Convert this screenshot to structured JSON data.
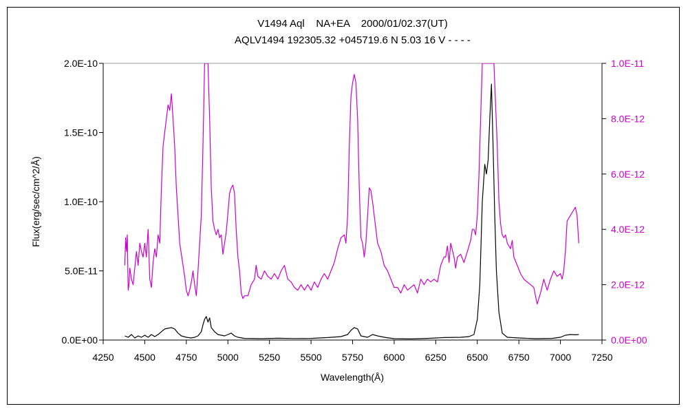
{
  "title": {
    "line1": "V1494 Aql    NA+EA    2000/01/02.37(UT)",
    "line2": "AQLV1494 192305.32 +045719.6 N 5.03 16 V - - - -"
  },
  "colors": {
    "left_series": "#000000",
    "right_series": "#cc00cc",
    "right_axis": "#cc00cc"
  },
  "chart_data": {
    "type": "line",
    "title": "V1494 Aql    NA+EA    2000/01/02.37(UT)",
    "subtitle": "AQLV1494 192305.32 +045719.6 N 5.03 16 V - - - -",
    "xlabel": "Wavelength(Å)",
    "ylabel": "Flux(erg/sec/cm^2/Å)",
    "xlim": [
      4250,
      7250
    ],
    "ylim": [
      0,
      2e-10
    ],
    "y2lim": [
      0,
      1e-11
    ],
    "xticks": [
      "4250",
      "4500",
      "4750",
      "5000",
      "5250",
      "5500",
      "5750",
      "6000",
      "6250",
      "6500",
      "6750",
      "7000",
      "7250"
    ],
    "yticks": [
      "0.0E+00",
      "5.0E-11",
      "1.0E-10",
      "1.5E-10",
      "2.0E-10"
    ],
    "y2ticks": [
      "0.0E+00",
      "2.0E-12",
      "4.0E-12",
      "6.0E-12",
      "8.0E-12",
      "1.0E-11"
    ],
    "grid": false,
    "series": [
      {
        "axis": "left",
        "color": "#000000",
        "points": [
          [
            4380,
            3e-12
          ],
          [
            4400,
            2e-12
          ],
          [
            4420,
            4e-12
          ],
          [
            4440,
            1.5e-12
          ],
          [
            4460,
            3e-12
          ],
          [
            4480,
            2e-12
          ],
          [
            4500,
            3.5e-12
          ],
          [
            4520,
            2e-12
          ],
          [
            4540,
            4e-12
          ],
          [
            4560,
            2.5e-12
          ],
          [
            4580,
            4e-12
          ],
          [
            4600,
            6e-12
          ],
          [
            4620,
            8e-12
          ],
          [
            4640,
            8.5e-12
          ],
          [
            4660,
            9e-12
          ],
          [
            4680,
            8e-12
          ],
          [
            4700,
            5e-12
          ],
          [
            4720,
            3e-12
          ],
          [
            4750,
            2e-12
          ],
          [
            4780,
            1.5e-12
          ],
          [
            4800,
            2e-12
          ],
          [
            4820,
            3e-12
          ],
          [
            4840,
            6e-12
          ],
          [
            4850,
            1.1e-11
          ],
          [
            4860,
            1.5e-11
          ],
          [
            4870,
            1.7e-11
          ],
          [
            4880,
            1.3e-11
          ],
          [
            4890,
            1.6e-11
          ],
          [
            4900,
            9e-12
          ],
          [
            4920,
            6e-12
          ],
          [
            4940,
            4e-12
          ],
          [
            4960,
            3.5e-12
          ],
          [
            4980,
            3e-12
          ],
          [
            5000,
            4e-12
          ],
          [
            5020,
            5e-12
          ],
          [
            5040,
            3e-12
          ],
          [
            5060,
            2e-12
          ],
          [
            5100,
            1.2e-12
          ],
          [
            5200,
            1e-12
          ],
          [
            5300,
            1.3e-12
          ],
          [
            5400,
            1.1e-12
          ],
          [
            5500,
            1.2e-12
          ],
          [
            5600,
            1.8e-12
          ],
          [
            5680,
            2.5e-12
          ],
          [
            5720,
            4e-12
          ],
          [
            5740,
            7e-12
          ],
          [
            5760,
            9e-12
          ],
          [
            5780,
            8e-12
          ],
          [
            5800,
            3e-12
          ],
          [
            5840,
            2e-12
          ],
          [
            5870,
            4e-12
          ],
          [
            5900,
            3e-12
          ],
          [
            5950,
            1.8e-12
          ],
          [
            6000,
            1e-12
          ],
          [
            6100,
            8e-13
          ],
          [
            6200,
            1.2e-12
          ],
          [
            6300,
            1.8e-12
          ],
          [
            6400,
            2e-12
          ],
          [
            6450,
            2.5e-12
          ],
          [
            6480,
            4e-12
          ],
          [
            6500,
            1.5e-11
          ],
          [
            6515,
            4e-11
          ],
          [
            6530,
            1e-10
          ],
          [
            6545,
            1.27e-10
          ],
          [
            6555,
            1.2e-10
          ],
          [
            6565,
            1.3e-10
          ],
          [
            6575,
            1.6e-10
          ],
          [
            6585,
            1.85e-10
          ],
          [
            6595,
            1.4e-10
          ],
          [
            6605,
            9e-11
          ],
          [
            6615,
            5e-11
          ],
          [
            6630,
            2e-11
          ],
          [
            6650,
            5e-12
          ],
          [
            6680,
            2e-12
          ],
          [
            6750,
            1.5e-12
          ],
          [
            6850,
            1e-12
          ],
          [
            6950,
            1.2e-12
          ],
          [
            7000,
            2e-12
          ],
          [
            7030,
            3.5e-12
          ],
          [
            7060,
            4e-12
          ],
          [
            7090,
            3.8e-12
          ],
          [
            7110,
            4e-12
          ]
        ]
      },
      {
        "axis": "right",
        "color": "#cc00cc",
        "points": [
          [
            4380,
            2.7e-12
          ],
          [
            4385,
            3.7e-12
          ],
          [
            4390,
            3.2e-12
          ],
          [
            4395,
            3.8e-12
          ],
          [
            4400,
            1.8e-12
          ],
          [
            4405,
            2e-12
          ],
          [
            4410,
            2.6e-12
          ],
          [
            4420,
            2.2e-12
          ],
          [
            4430,
            2e-12
          ],
          [
            4440,
            2.6e-12
          ],
          [
            4450,
            3.2e-12
          ],
          [
            4460,
            2.7e-12
          ],
          [
            4470,
            3.5e-12
          ],
          [
            4480,
            3.2e-12
          ],
          [
            4490,
            3e-12
          ],
          [
            4500,
            3.5e-12
          ],
          [
            4510,
            3e-12
          ],
          [
            4520,
            4e-12
          ],
          [
            4530,
            2.2e-12
          ],
          [
            4540,
            1.9e-12
          ],
          [
            4550,
            2.8e-12
          ],
          [
            4560,
            3.3e-12
          ],
          [
            4570,
            3e-12
          ],
          [
            4580,
            3.8e-12
          ],
          [
            4590,
            3.5e-12
          ],
          [
            4600,
            5.5e-12
          ],
          [
            4610,
            7e-12
          ],
          [
            4620,
            7.5e-12
          ],
          [
            4630,
            8e-12
          ],
          [
            4640,
            8.5e-12
          ],
          [
            4650,
            8.3e-12
          ],
          [
            4660,
            8.9e-12
          ],
          [
            4670,
            8e-12
          ],
          [
            4680,
            7e-12
          ],
          [
            4690,
            5.5e-12
          ],
          [
            4700,
            4.5e-12
          ],
          [
            4710,
            3.5e-12
          ],
          [
            4720,
            3.1e-12
          ],
          [
            4730,
            2.7e-12
          ],
          [
            4740,
            2.3e-12
          ],
          [
            4750,
            1.8e-12
          ],
          [
            4760,
            1.6e-12
          ],
          [
            4770,
            1.8e-12
          ],
          [
            4780,
            2.1e-12
          ],
          [
            4790,
            2.5e-12
          ],
          [
            4800,
            2e-12
          ],
          [
            4810,
            1.6e-12
          ],
          [
            4820,
            2.5e-12
          ],
          [
            4830,
            3.5e-12
          ],
          [
            4840,
            4.5e-12
          ],
          [
            4850,
            7e-12
          ],
          [
            4860,
            1e-11
          ],
          [
            4870,
            1e-11
          ],
          [
            4880,
            1e-11
          ],
          [
            4890,
            8e-12
          ],
          [
            4900,
            5.5e-12
          ],
          [
            4910,
            4.3e-12
          ],
          [
            4920,
            4e-12
          ],
          [
            4930,
            3.8e-12
          ],
          [
            4940,
            4e-12
          ],
          [
            4950,
            3.7e-12
          ],
          [
            4960,
            3.8e-12
          ],
          [
            4970,
            3.1e-12
          ],
          [
            4980,
            3.5e-12
          ],
          [
            4990,
            3.9e-12
          ],
          [
            5000,
            4.6e-12
          ],
          [
            5010,
            5.3e-12
          ],
          [
            5020,
            5.5e-12
          ],
          [
            5030,
            5.6e-12
          ],
          [
            5040,
            5.3e-12
          ],
          [
            5050,
            4e-12
          ],
          [
            5060,
            3e-12
          ],
          [
            5070,
            2.5e-12
          ],
          [
            5080,
            1.7e-12
          ],
          [
            5090,
            1.5e-12
          ],
          [
            5100,
            1.6e-12
          ],
          [
            5120,
            1.6e-12
          ],
          [
            5140,
            2e-12
          ],
          [
            5160,
            2.2e-12
          ],
          [
            5170,
            2.7e-12
          ],
          [
            5180,
            2.3e-12
          ],
          [
            5200,
            2.2e-12
          ],
          [
            5220,
            2.5e-12
          ],
          [
            5240,
            2.3e-12
          ],
          [
            5260,
            2.2e-12
          ],
          [
            5280,
            2.4e-12
          ],
          [
            5300,
            2.2e-12
          ],
          [
            5320,
            2.5e-12
          ],
          [
            5340,
            2.7e-12
          ],
          [
            5360,
            2.2e-12
          ],
          [
            5380,
            2.1e-12
          ],
          [
            5400,
            1.9e-12
          ],
          [
            5420,
            1.8e-12
          ],
          [
            5440,
            2e-12
          ],
          [
            5460,
            1.8e-12
          ],
          [
            5480,
            2e-12
          ],
          [
            5500,
            1.8e-12
          ],
          [
            5520,
            2.1e-12
          ],
          [
            5540,
            1.9e-12
          ],
          [
            5560,
            2.2e-12
          ],
          [
            5580,
            2.4e-12
          ],
          [
            5600,
            2.2e-12
          ],
          [
            5620,
            2.5e-12
          ],
          [
            5640,
            2.8e-12
          ],
          [
            5660,
            3.3e-12
          ],
          [
            5680,
            3.7e-12
          ],
          [
            5700,
            3.8e-12
          ],
          [
            5710,
            3.5e-12
          ],
          [
            5720,
            4.5e-12
          ],
          [
            5730,
            7e-12
          ],
          [
            5740,
            8.8e-12
          ],
          [
            5750,
            9.3e-12
          ],
          [
            5760,
            9.6e-12
          ],
          [
            5770,
            9.3e-12
          ],
          [
            5780,
            8e-12
          ],
          [
            5790,
            5.5e-12
          ],
          [
            5800,
            3.7e-12
          ],
          [
            5810,
            3.5e-12
          ],
          [
            5820,
            3e-12
          ],
          [
            5830,
            3.5e-12
          ],
          [
            5840,
            4.5e-12
          ],
          [
            5850,
            5.5e-12
          ],
          [
            5860,
            5.4e-12
          ],
          [
            5870,
            5e-12
          ],
          [
            5880,
            4.5e-12
          ],
          [
            5900,
            3.5e-12
          ],
          [
            5920,
            3.2e-12
          ],
          [
            5940,
            2.7e-12
          ],
          [
            5960,
            2.5e-12
          ],
          [
            5980,
            2.2e-12
          ],
          [
            6000,
            1.9e-12
          ],
          [
            6020,
            1.9e-12
          ],
          [
            6040,
            1.7e-12
          ],
          [
            6060,
            2e-12
          ],
          [
            6080,
            1.8e-12
          ],
          [
            6100,
            1.9e-12
          ],
          [
            6120,
            2e-12
          ],
          [
            6140,
            1.7e-12
          ],
          [
            6160,
            2.2e-12
          ],
          [
            6180,
            2e-12
          ],
          [
            6200,
            2.2e-12
          ],
          [
            6220,
            2.1e-12
          ],
          [
            6240,
            2.2e-12
          ],
          [
            6260,
            2.1e-12
          ],
          [
            6280,
            2.7e-12
          ],
          [
            6300,
            3e-12
          ],
          [
            6310,
            3e-12
          ],
          [
            6320,
            3.4e-12
          ],
          [
            6330,
            2.8e-12
          ],
          [
            6340,
            3.5e-12
          ],
          [
            6360,
            3e-12
          ],
          [
            6370,
            2.6e-12
          ],
          [
            6380,
            3e-12
          ],
          [
            6400,
            3.1e-12
          ],
          [
            6420,
            2.8e-12
          ],
          [
            6440,
            3.2e-12
          ],
          [
            6460,
            3.6e-12
          ],
          [
            6470,
            4e-12
          ],
          [
            6480,
            4e-12
          ],
          [
            6490,
            3.8e-12
          ],
          [
            6500,
            4.5e-12
          ],
          [
            6510,
            6e-12
          ],
          [
            6520,
            8e-12
          ],
          [
            6530,
            1e-11
          ],
          [
            6600,
            1e-11
          ],
          [
            6620,
            7e-12
          ],
          [
            6630,
            5e-12
          ],
          [
            6640,
            4.2e-12
          ],
          [
            6650,
            3.8e-12
          ],
          [
            6660,
            3.7e-12
          ],
          [
            6670,
            3.8e-12
          ],
          [
            6680,
            3.5e-12
          ],
          [
            6700,
            3.3e-12
          ],
          [
            6710,
            3.6e-12
          ],
          [
            6720,
            3e-12
          ],
          [
            6740,
            2.7e-12
          ],
          [
            6760,
            2.4e-12
          ],
          [
            6780,
            2.2e-12
          ],
          [
            6800,
            2.1e-12
          ],
          [
            6820,
            2e-12
          ],
          [
            6840,
            1.9e-12
          ],
          [
            6850,
            1.6e-12
          ],
          [
            6860,
            1.3e-12
          ],
          [
            6880,
            1.7e-12
          ],
          [
            6900,
            2.2e-12
          ],
          [
            6910,
            2e-12
          ],
          [
            6920,
            1.8e-12
          ],
          [
            6940,
            2.2e-12
          ],
          [
            6960,
            2.5e-12
          ],
          [
            6980,
            2.3e-12
          ],
          [
            7000,
            2.4e-12
          ],
          [
            7010,
            2.2e-12
          ],
          [
            7020,
            2.5e-12
          ],
          [
            7030,
            3.2e-12
          ],
          [
            7040,
            4.3e-12
          ],
          [
            7060,
            4.5e-12
          ],
          [
            7080,
            4.7e-12
          ],
          [
            7090,
            4.8e-12
          ],
          [
            7100,
            4.5e-12
          ],
          [
            7110,
            3.5e-12
          ]
        ]
      }
    ]
  }
}
